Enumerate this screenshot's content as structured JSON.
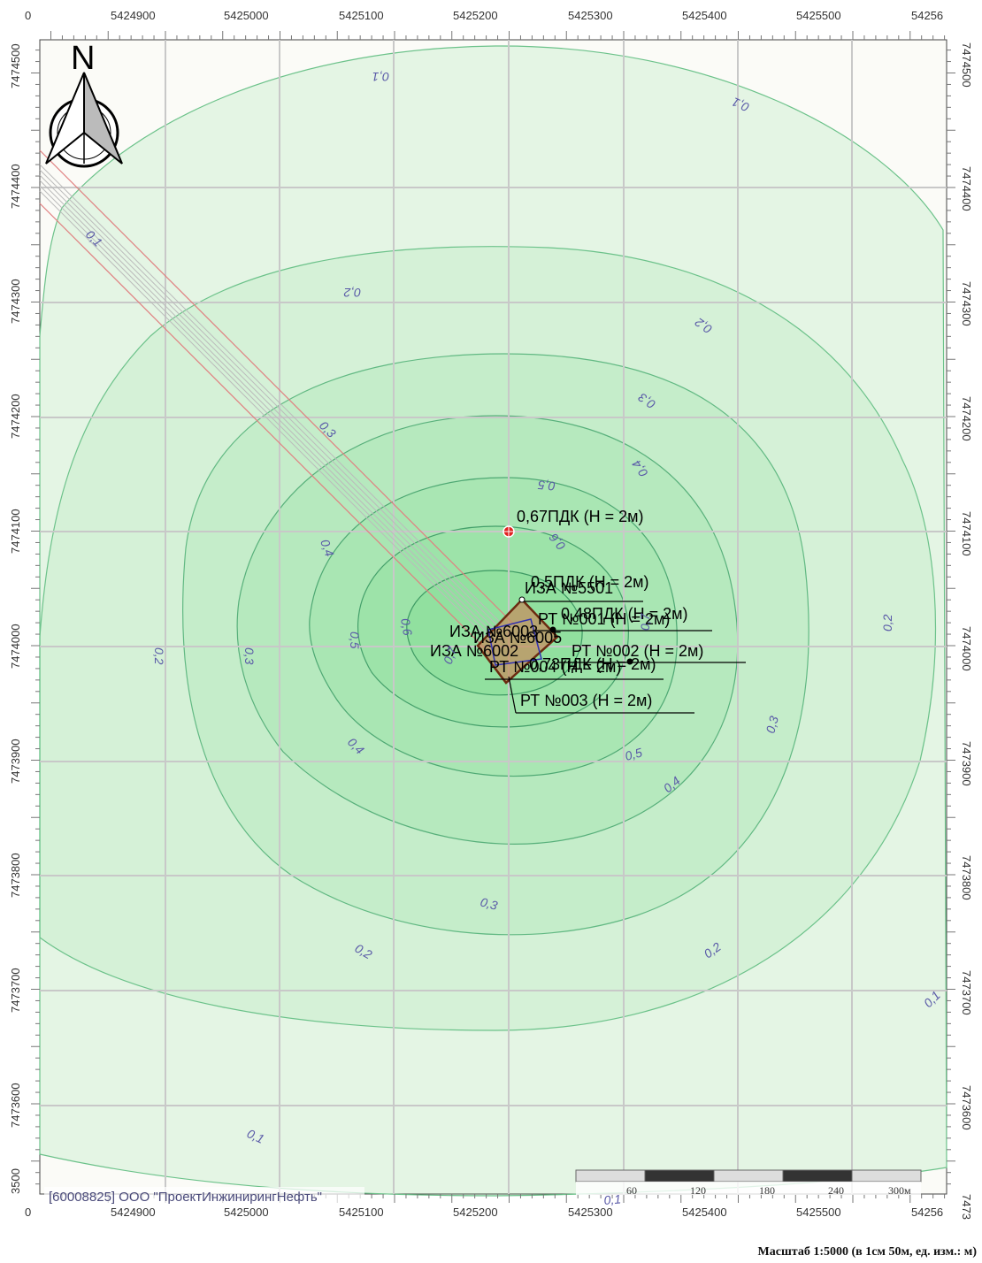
{
  "axes": {
    "x_ticks": [
      "5424900",
      "5425000",
      "5425100",
      "5425200",
      "5425300",
      "5425400",
      "5425500"
    ],
    "x_edge_left": "0",
    "x_edge_right": "54256",
    "y_ticks": [
      "7474400",
      "7474300",
      "7474200",
      "7474100",
      "7474000",
      "7473900",
      "7473800",
      "7473700",
      "7473600"
    ],
    "y_top_left": "7474500",
    "y_top_right": "7474500",
    "y_bottom_left": "3500",
    "y_bottom_right": "7473"
  },
  "north_arrow": {
    "label": "N"
  },
  "contours": [
    {
      "label": "0,1"
    },
    {
      "label": "0,1"
    },
    {
      "label": "0,1"
    },
    {
      "label": "0,1"
    },
    {
      "label": "0,1"
    },
    {
      "label": "0,1"
    },
    {
      "label": "0,2"
    },
    {
      "label": "0,2"
    },
    {
      "label": "0,2"
    },
    {
      "label": "0,2"
    },
    {
      "label": "0,2"
    },
    {
      "label": "0,2"
    },
    {
      "label": "0,3"
    },
    {
      "label": "0,3"
    },
    {
      "label": "0,3"
    },
    {
      "label": "0,3"
    },
    {
      "label": "0,3"
    },
    {
      "label": "0,4"
    },
    {
      "label": "0,4"
    },
    {
      "label": "0,4"
    },
    {
      "label": "0,4"
    },
    {
      "label": "0,5"
    },
    {
      "label": "0,5"
    },
    {
      "label": "0,5"
    },
    {
      "label": "0,6"
    },
    {
      "label": "0,6"
    },
    {
      "label": "0,7"
    },
    {
      "label": "0,7"
    }
  ],
  "markers": {
    "max_point": "0,67ПДК (Н = 2м)",
    "labels": [
      "0,5ПДК (Н = 2м)",
      "ИЗА №5501",
      "0,48ПДК (Н = 2м)",
      "РТ №001 (Н = 2м)",
      "ИЗА №6003",
      "ИЗА №6005",
      "ИЗА №6002",
      "РТ №002 (Н = 2м)",
      "0,73ПДК (Н = 2м)",
      "РТ №004 (Н = 2м)",
      "РТ №003 (Н = 2м)"
    ]
  },
  "scale_bar": {
    "ticks": [
      "60",
      "120",
      "180",
      "240",
      "300м"
    ]
  },
  "organization": "[60008825] ООО \"ПроектИнжинирингНефть\"",
  "footer": "Масштаб 1:5000 (в 1см 50м, ед. изм.: м)",
  "colors": {
    "contour_fill": "#3fcf5a",
    "contour_line": "#3a9a5a",
    "grid": "#c8c8c8",
    "pipeline": "#e08080",
    "label_text": "#5a5aa8"
  }
}
